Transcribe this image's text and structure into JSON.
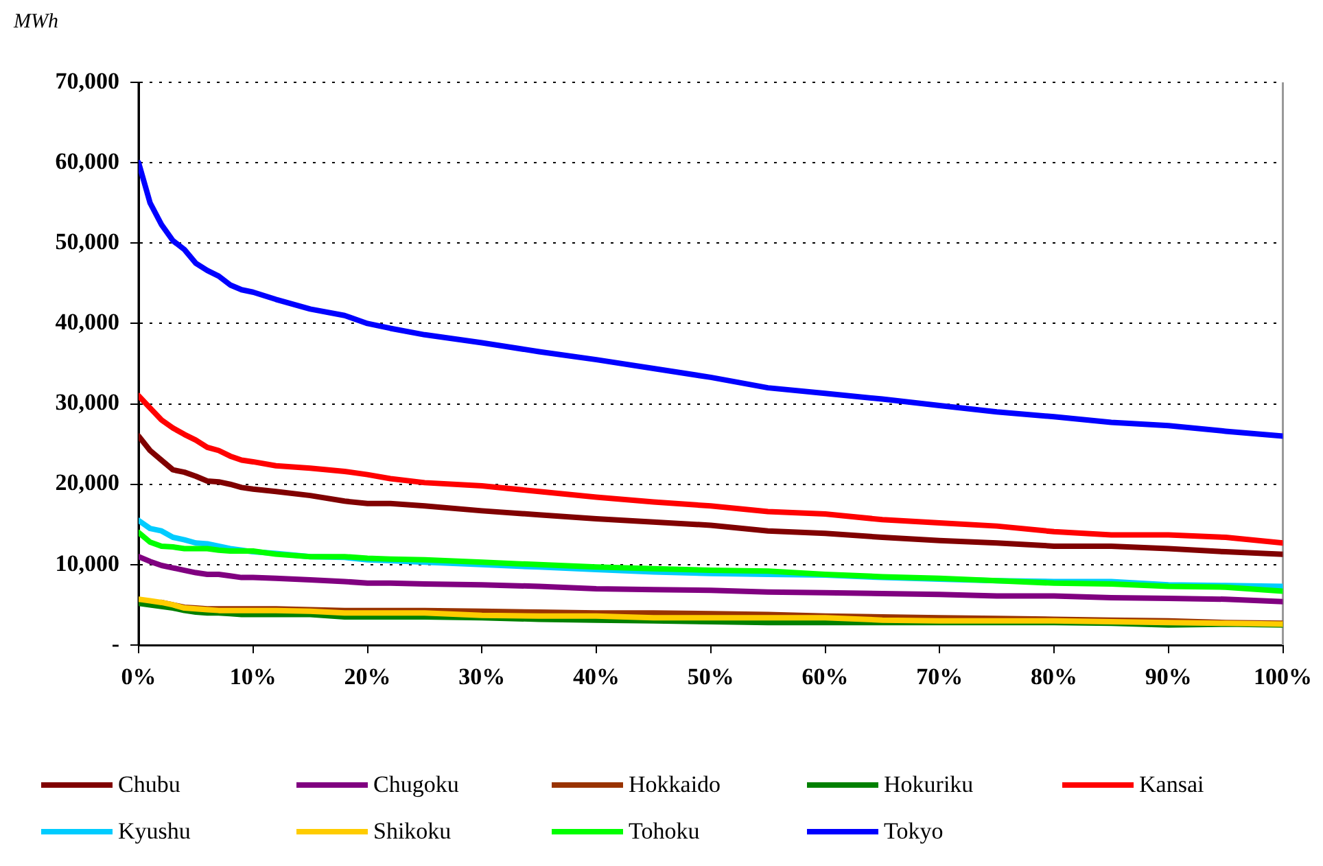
{
  "chart_data": {
    "type": "line",
    "ylabel": "MWh",
    "x": [
      0,
      1,
      2,
      3,
      4,
      5,
      6,
      7,
      8,
      9,
      10,
      12,
      15,
      18,
      20,
      22,
      25,
      30,
      35,
      40,
      45,
      50,
      55,
      60,
      65,
      70,
      75,
      80,
      85,
      90,
      95,
      100
    ],
    "xlim": [
      0,
      100
    ],
    "xticks": [
      {
        "value": 0,
        "label": "0%"
      },
      {
        "value": 10,
        "label": "10%"
      },
      {
        "value": 20,
        "label": "20%"
      },
      {
        "value": 30,
        "label": "30%"
      },
      {
        "value": 40,
        "label": "40%"
      },
      {
        "value": 50,
        "label": "50%"
      },
      {
        "value": 60,
        "label": "60%"
      },
      {
        "value": 70,
        "label": "70%"
      },
      {
        "value": 80,
        "label": "80%"
      },
      {
        "value": 90,
        "label": "90%"
      },
      {
        "value": 100,
        "label": "100%"
      }
    ],
    "ylim": [
      0,
      70000
    ],
    "yticks": [
      {
        "value": 0,
        "label": "-"
      },
      {
        "value": 10000,
        "label": "10,000"
      },
      {
        "value": 20000,
        "label": "20,000"
      },
      {
        "value": 30000,
        "label": "30,000"
      },
      {
        "value": 40000,
        "label": "40,000"
      },
      {
        "value": 50000,
        "label": "50,000"
      },
      {
        "value": 60000,
        "label": "60,000"
      },
      {
        "value": 70000,
        "label": "70,000"
      }
    ],
    "grid": "y",
    "legend": "bottom",
    "marker": "none",
    "line_style": "solid",
    "series": [
      {
        "name": "Chubu",
        "color": "#800000",
        "values": [
          26000,
          24200,
          23000,
          21800,
          21500,
          21000,
          20400,
          20300,
          20000,
          19600,
          19400,
          19100,
          18600,
          17900,
          17600,
          17600,
          17300,
          16700,
          16200,
          15700,
          15300,
          14900,
          14200,
          13900,
          13400,
          13000,
          12700,
          12300,
          12300,
          12000,
          11600,
          11300
        ]
      },
      {
        "name": "Chugoku",
        "color": "#800080",
        "values": [
          11000,
          10400,
          9900,
          9600,
          9300,
          9000,
          8800,
          8800,
          8600,
          8400,
          8400,
          8300,
          8100,
          7900,
          7700,
          7700,
          7600,
          7500,
          7300,
          7000,
          6900,
          6800,
          6600,
          6500,
          6400,
          6300,
          6100,
          6100,
          5900,
          5800,
          5700,
          5400
        ]
      },
      {
        "name": "Hokkaido",
        "color": "#993300",
        "values": [
          null,
          null,
          5300,
          5000,
          4700,
          4600,
          4500,
          4500,
          4500,
          4500,
          4500,
          4500,
          4400,
          4300,
          4300,
          4300,
          4300,
          4200,
          4100,
          4000,
          4000,
          3900,
          3800,
          3600,
          3500,
          3400,
          3300,
          3200,
          3100,
          3000,
          2800,
          2700
        ]
      },
      {
        "name": "Hokuriku",
        "color": "#008000",
        "values": [
          5200,
          5000,
          4800,
          4600,
          4300,
          4100,
          4000,
          4000,
          3900,
          3800,
          3800,
          3800,
          3800,
          3500,
          3500,
          3500,
          3500,
          3400,
          3200,
          3100,
          3000,
          2900,
          2800,
          2800,
          2800,
          2800,
          2800,
          2800,
          2700,
          2500,
          2600,
          2500
        ]
      },
      {
        "name": "Kansai",
        "color": "#ff0000",
        "values": [
          31000,
          29500,
          28000,
          27000,
          26200,
          25500,
          24600,
          24200,
          23500,
          23000,
          22800,
          22300,
          22000,
          21600,
          21200,
          20700,
          20200,
          19800,
          19100,
          18400,
          17800,
          17300,
          16600,
          16300,
          15600,
          15200,
          14800,
          14100,
          13700,
          13700,
          13400,
          12700
        ]
      },
      {
        "name": "Kyushu",
        "color": "#00ccff",
        "values": [
          15500,
          14500,
          14200,
          13400,
          13100,
          12700,
          12600,
          12300,
          12000,
          11800,
          11600,
          11400,
          11000,
          10900,
          10600,
          10500,
          10300,
          10000,
          9700,
          9400,
          9100,
          8900,
          8800,
          8700,
          8400,
          8200,
          8000,
          7900,
          7900,
          7500,
          7400,
          7300
        ]
      },
      {
        "name": "Shikoku",
        "color": "#ffcc00",
        "values": [
          5700,
          5500,
          5300,
          5000,
          4600,
          4500,
          4400,
          4300,
          4300,
          4300,
          4300,
          4300,
          4200,
          4000,
          4000,
          4000,
          4000,
          3700,
          3600,
          3600,
          3400,
          3400,
          3400,
          3400,
          3100,
          3000,
          3000,
          3000,
          2900,
          2800,
          2700,
          2600
        ]
      },
      {
        "name": "Tohoku",
        "color": "#00ff00",
        "values": [
          14000,
          12800,
          12300,
          12200,
          12000,
          12000,
          12000,
          11800,
          11700,
          11700,
          11700,
          11300,
          11000,
          11000,
          10800,
          10700,
          10600,
          10300,
          10000,
          9700,
          9500,
          9300,
          9200,
          8800,
          8500,
          8300,
          8000,
          7700,
          7600,
          7300,
          7200,
          6700
        ]
      },
      {
        "name": "Tokyo",
        "color": "#0000ff",
        "values": [
          60000,
          55000,
          52300,
          50300,
          49200,
          47500,
          46600,
          45900,
          44800,
          44200,
          43900,
          43000,
          41800,
          41000,
          40000,
          39400,
          38600,
          37600,
          36500,
          35500,
          34400,
          33300,
          32000,
          31300,
          30600,
          29800,
          29000,
          28400,
          27700,
          27300,
          26600,
          26000
        ]
      }
    ]
  }
}
